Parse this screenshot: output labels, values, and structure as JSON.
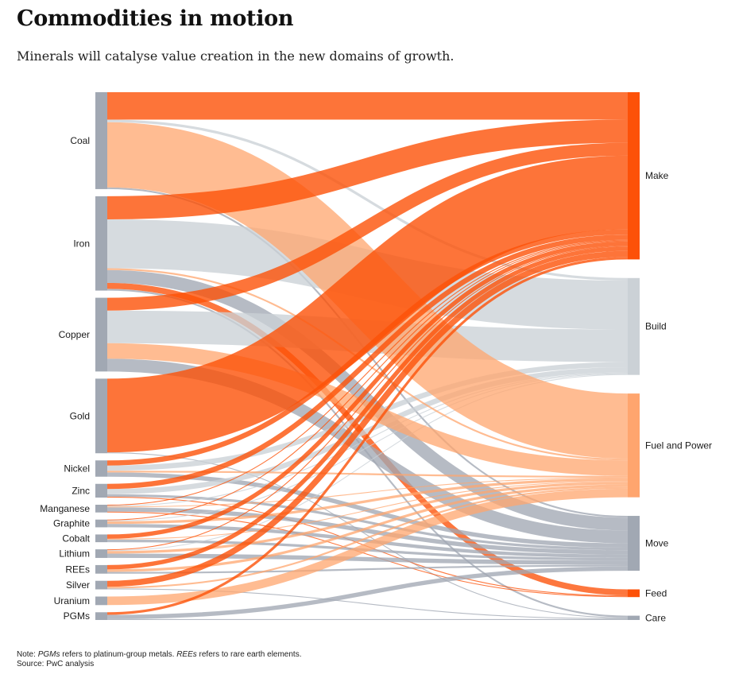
{
  "title": "Commodities in motion",
  "subtitle": "Minerals will catalyse value creation in the new domains of growth.",
  "note": {
    "prefix": "Note: ",
    "term1": "PGMs",
    "mid1": " refers to platinum-group metals. ",
    "term2": "REEs",
    "mid2": " refers to rare earth elements."
  },
  "source": "Source: PwC analysis",
  "colors": {
    "make": "#fd5108",
    "build": "#cbd1d6",
    "fuel": "#ffa56e",
    "move": "#a1a8b3",
    "feed": "#fd5108",
    "care": "#a1a8b3",
    "source_node": "#a1a8b3"
  },
  "chart_data": {
    "type": "sankey",
    "sources": [
      "Coal",
      "Iron",
      "Copper",
      "Gold",
      "Nickel",
      "Zinc",
      "Manganese",
      "Graphite",
      "Cobalt",
      "Lithium",
      "REEs",
      "Silver",
      "Uranium",
      "PGMs"
    ],
    "targets": [
      "Make",
      "Build",
      "Fuel and Power",
      "Move",
      "Feed",
      "Care"
    ],
    "flows": [
      {
        "source": "Coal",
        "target": "Make",
        "value": 32
      },
      {
        "source": "Coal",
        "target": "Build",
        "value": 3
      },
      {
        "source": "Coal",
        "target": "Fuel and Power",
        "value": 76
      },
      {
        "source": "Coal",
        "target": "Move",
        "value": 2
      },
      {
        "source": "Iron",
        "target": "Make",
        "value": 27
      },
      {
        "source": "Iron",
        "target": "Build",
        "value": 57
      },
      {
        "source": "Iron",
        "target": "Move",
        "value": 15
      },
      {
        "source": "Iron",
        "target": "Feed",
        "value": 7
      },
      {
        "source": "Iron",
        "target": "Fuel and Power",
        "value": 2
      },
      {
        "source": "Iron",
        "target": "Care",
        "value": 2
      },
      {
        "source": "Copper",
        "target": "Make",
        "value": 15
      },
      {
        "source": "Copper",
        "target": "Build",
        "value": 38
      },
      {
        "source": "Copper",
        "target": "Fuel and Power",
        "value": 18
      },
      {
        "source": "Copper",
        "target": "Move",
        "value": 15
      },
      {
        "source": "Gold",
        "target": "Make",
        "value": 86
      },
      {
        "source": "Gold",
        "target": "Care",
        "value": 1
      },
      {
        "source": "Nickel",
        "target": "Make",
        "value": 6
      },
      {
        "source": "Nickel",
        "target": "Build",
        "value": 6
      },
      {
        "source": "Nickel",
        "target": "Move",
        "value": 5
      },
      {
        "source": "Nickel",
        "target": "Fuel and Power",
        "value": 2
      },
      {
        "source": "Zinc",
        "target": "Make",
        "value": 6
      },
      {
        "source": "Zinc",
        "target": "Build",
        "value": 6
      },
      {
        "source": "Zinc",
        "target": "Move",
        "value": 3
      },
      {
        "source": "Zinc",
        "target": "Feed",
        "value": 1
      },
      {
        "source": "Manganese",
        "target": "Make",
        "value": 1
      },
      {
        "source": "Manganese",
        "target": "Build",
        "value": 1
      },
      {
        "source": "Manganese",
        "target": "Fuel and Power",
        "value": 1
      },
      {
        "source": "Manganese",
        "target": "Move",
        "value": 5
      },
      {
        "source": "Manganese",
        "target": "Feed",
        "value": 1
      },
      {
        "source": "Graphite",
        "target": "Make",
        "value": 1
      },
      {
        "source": "Graphite",
        "target": "Build",
        "value": 1
      },
      {
        "source": "Graphite",
        "target": "Fuel and Power",
        "value": 3
      },
      {
        "source": "Graphite",
        "target": "Move",
        "value": 4
      },
      {
        "source": "Cobalt",
        "target": "Make",
        "value": 5
      },
      {
        "source": "Cobalt",
        "target": "Fuel and Power",
        "value": 1
      },
      {
        "source": "Cobalt",
        "target": "Move",
        "value": 3
      },
      {
        "source": "Lithium",
        "target": "Make",
        "value": 1
      },
      {
        "source": "Lithium",
        "target": "Build",
        "value": 1
      },
      {
        "source": "Lithium",
        "target": "Fuel and Power",
        "value": 3
      },
      {
        "source": "Lithium",
        "target": "Move",
        "value": 5
      },
      {
        "source": "REEs",
        "target": "Make",
        "value": 5
      },
      {
        "source": "REEs",
        "target": "Fuel and Power",
        "value": 3
      },
      {
        "source": "REEs",
        "target": "Move",
        "value": 2
      },
      {
        "source": "Silver",
        "target": "Make",
        "value": 7
      },
      {
        "source": "Silver",
        "target": "Fuel and Power",
        "value": 2
      },
      {
        "source": "Silver",
        "target": "Care",
        "value": 1
      },
      {
        "source": "Uranium",
        "target": "Fuel and Power",
        "value": 10
      },
      {
        "source": "PGMs",
        "target": "Make",
        "value": 3
      },
      {
        "source": "PGMs",
        "target": "Move",
        "value": 5
      },
      {
        "source": "PGMs",
        "target": "Care",
        "value": 1
      }
    ]
  }
}
